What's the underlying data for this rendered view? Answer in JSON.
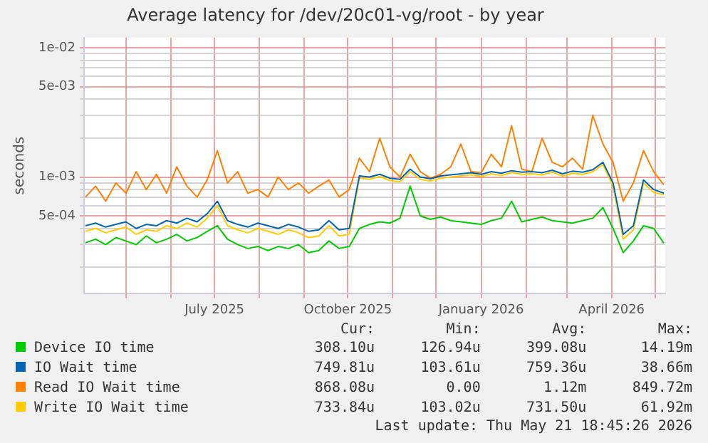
{
  "chart_data": {
    "type": "line",
    "title": "Average latency for /dev/20c01-vg/root - by year",
    "ylabel": "seconds",
    "x": [
      "2025-04-03",
      "2025-04-10",
      "2025-04-17",
      "2025-04-24",
      "2025-05-01",
      "2025-05-08",
      "2025-05-15",
      "2025-05-22",
      "2025-05-29",
      "2025-06-05",
      "2025-06-12",
      "2025-06-19",
      "2025-06-26",
      "2025-07-03",
      "2025-07-10",
      "2025-07-17",
      "2025-07-24",
      "2025-07-31",
      "2025-08-07",
      "2025-08-14",
      "2025-08-21",
      "2025-08-28",
      "2025-09-04",
      "2025-09-11",
      "2025-09-18",
      "2025-09-25",
      "2025-10-02",
      "2025-10-09",
      "2025-10-16",
      "2025-10-23",
      "2025-10-30",
      "2025-11-06",
      "2025-11-13",
      "2025-11-20",
      "2025-11-27",
      "2025-12-04",
      "2025-12-11",
      "2025-12-18",
      "2025-12-25",
      "2026-01-01",
      "2026-01-08",
      "2026-01-15",
      "2026-01-22",
      "2026-01-29",
      "2026-02-05",
      "2026-02-12",
      "2026-02-19",
      "2026-02-26",
      "2026-03-05",
      "2026-03-12",
      "2026-03-19",
      "2026-03-26",
      "2026-04-02",
      "2026-04-09",
      "2026-04-16",
      "2026-04-23",
      "2026-04-30",
      "2026-05-07"
    ],
    "series": [
      {
        "name": "Device IO time",
        "color": "#00cc00",
        "values": [
          0.00031,
          0.00033,
          0.0003,
          0.00034,
          0.00032,
          0.0003,
          0.00035,
          0.00031,
          0.00033,
          0.00036,
          0.00032,
          0.00034,
          0.00038,
          0.00042,
          0.00033,
          0.0003,
          0.00028,
          0.00029,
          0.00027,
          0.00029,
          0.00028,
          0.0003,
          0.00026,
          0.00027,
          0.00032,
          0.00028,
          0.00029,
          0.0004,
          0.00043,
          0.00045,
          0.00044,
          0.00048,
          0.00085,
          0.0005,
          0.00047,
          0.00049,
          0.00046,
          0.00045,
          0.00044,
          0.00043,
          0.00046,
          0.00048,
          0.00065,
          0.00045,
          0.00047,
          0.00049,
          0.00046,
          0.00045,
          0.00044,
          0.00046,
          0.00048,
          0.00058,
          0.0004,
          0.00026,
          0.00032,
          0.00042,
          0.0004,
          0.000308
        ]
      },
      {
        "name": "IO Wait time",
        "color": "#0066b3",
        "values": [
          0.00042,
          0.00044,
          0.00041,
          0.00043,
          0.00045,
          0.0004,
          0.00043,
          0.00042,
          0.00046,
          0.00044,
          0.00048,
          0.00045,
          0.00052,
          0.00065,
          0.00046,
          0.00043,
          0.00041,
          0.00044,
          0.00042,
          0.0004,
          0.00043,
          0.00041,
          0.00038,
          0.00039,
          0.00046,
          0.00039,
          0.0004,
          0.00102,
          0.001,
          0.00105,
          0.00098,
          0.00096,
          0.00115,
          0.001,
          0.00097,
          0.00102,
          0.00104,
          0.00106,
          0.00108,
          0.00105,
          0.0011,
          0.00107,
          0.00112,
          0.00109,
          0.0011,
          0.00108,
          0.00113,
          0.00106,
          0.00111,
          0.00109,
          0.00114,
          0.0013,
          0.0009,
          0.00036,
          0.00042,
          0.00095,
          0.0008,
          0.00075
        ]
      },
      {
        "name": "Read IO Wait time",
        "color": "#ff8000",
        "values": [
          0.0007,
          0.00085,
          0.00065,
          0.0009,
          0.00075,
          0.0011,
          0.0008,
          0.00105,
          0.00075,
          0.0012,
          0.00085,
          0.0007,
          0.00095,
          0.0016,
          0.0009,
          0.0011,
          0.00075,
          0.0008,
          0.0007,
          0.001,
          0.0008,
          0.0009,
          0.00075,
          0.00085,
          0.00095,
          0.0007,
          0.0008,
          0.0014,
          0.0011,
          0.002,
          0.0012,
          0.001,
          0.0015,
          0.0011,
          0.00098,
          0.00105,
          0.0012,
          0.0018,
          0.0011,
          0.00108,
          0.0015,
          0.0012,
          0.0025,
          0.00115,
          0.0011,
          0.002,
          0.0013,
          0.0012,
          0.0014,
          0.00115,
          0.003,
          0.0018,
          0.0013,
          0.00065,
          0.0009,
          0.0016,
          0.0011,
          0.00087
        ]
      },
      {
        "name": "Write IO Wait time",
        "color": "#ffcc00",
        "values": [
          0.00038,
          0.0004,
          0.00037,
          0.00039,
          0.00041,
          0.00036,
          0.00039,
          0.00038,
          0.00042,
          0.0004,
          0.00044,
          0.00041,
          0.00048,
          0.0006,
          0.00042,
          0.00039,
          0.00037,
          0.0004,
          0.00038,
          0.00036,
          0.00039,
          0.00037,
          0.00034,
          0.00035,
          0.00042,
          0.00035,
          0.00036,
          0.00098,
          0.00096,
          0.00101,
          0.00094,
          0.00092,
          0.0011,
          0.00096,
          0.00093,
          0.00098,
          0.001,
          0.00102,
          0.00104,
          0.00101,
          0.00106,
          0.00103,
          0.00108,
          0.00105,
          0.00106,
          0.00104,
          0.00109,
          0.00102,
          0.00107,
          0.00105,
          0.0011,
          0.00125,
          0.00085,
          0.00033,
          0.00039,
          0.0009,
          0.00076,
          0.00073
        ]
      }
    ],
    "log": "y",
    "ylim": [
      0.000125,
      0.012
    ],
    "yticks": [
      {
        "value": 0.0002,
        "label": null
      },
      {
        "value": 0.0003,
        "label": null
      },
      {
        "value": 0.0004,
        "label": null
      },
      {
        "value": 0.0005,
        "label": "5e-04"
      },
      {
        "value": 0.0006,
        "label": null
      },
      {
        "value": 0.0007,
        "label": null
      },
      {
        "value": 0.0008,
        "label": null
      },
      {
        "value": 0.0009,
        "label": null
      },
      {
        "value": 0.001,
        "label": "1e-03"
      },
      {
        "value": 0.002,
        "label": null
      },
      {
        "value": 0.003,
        "label": null
      },
      {
        "value": 0.004,
        "label": null
      },
      {
        "value": 0.005,
        "label": "5e-03"
      },
      {
        "value": 0.006,
        "label": null
      },
      {
        "value": 0.007,
        "label": null
      },
      {
        "value": 0.008,
        "label": null
      },
      {
        "value": 0.009,
        "label": null
      },
      {
        "value": 0.01,
        "label": "1e-02"
      }
    ],
    "xlim": [
      "2025-04-02",
      "2026-05-08"
    ],
    "xticks": [
      {
        "value": "2025-05-01",
        "label": null
      },
      {
        "value": "2025-06-01",
        "label": null
      },
      {
        "value": "2025-07-01",
        "label": "July 2025"
      },
      {
        "value": "2025-08-01",
        "label": null
      },
      {
        "value": "2025-09-01",
        "label": null
      },
      {
        "value": "2025-10-01",
        "label": "October 2025"
      },
      {
        "value": "2025-11-01",
        "label": null
      },
      {
        "value": "2025-12-01",
        "label": null
      },
      {
        "value": "2026-01-01",
        "label": "January 2026"
      },
      {
        "value": "2026-02-01",
        "label": null
      },
      {
        "value": "2026-03-01",
        "label": null
      },
      {
        "value": "2026-04-01",
        "label": "April 2026"
      },
      {
        "value": "2026-05-01",
        "label": null
      }
    ],
    "grid": true,
    "legend": "bottom",
    "marker": "none",
    "line_style": "solid",
    "annotations": [
      "Cur:",
      "Min:",
      "Avg:",
      "Max:",
      "308.10u",
      "126.94u",
      "399.08u",
      "14.19m",
      "749.81u",
      "103.61u",
      "759.36u",
      "38.66m",
      "868.08u",
      "0.00",
      "1.12m",
      "849.72m",
      "733.84u",
      "103.02u",
      "731.50u",
      "61.92m",
      "Last update: Thu May 21 18:45:26 2026"
    ]
  }
}
